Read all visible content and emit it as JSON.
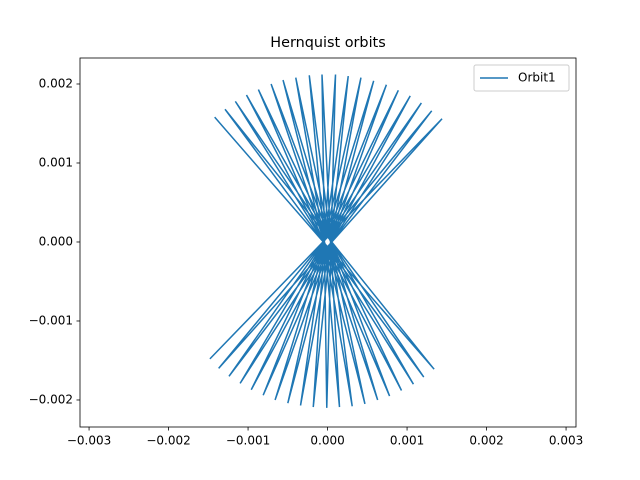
{
  "chart_data": {
    "type": "line",
    "title": "Hernquist orbits",
    "xlim": [
      -0.003114,
      0.003125
    ],
    "ylim": [
      -0.002342,
      0.002329
    ],
    "xticks": [
      {
        "value": -0.003,
        "label": "−0.003"
      },
      {
        "value": -0.002,
        "label": "−0.002"
      },
      {
        "value": -0.001,
        "label": "−0.001"
      },
      {
        "value": 0,
        "label": "0.000"
      },
      {
        "value": 0.001,
        "label": "0.001"
      },
      {
        "value": 0.002,
        "label": "0.002"
      },
      {
        "value": 0.003,
        "label": "0.003"
      }
    ],
    "yticks": [
      {
        "value": -0.002,
        "label": "−0.002"
      },
      {
        "value": -0.001,
        "label": "−0.001"
      },
      {
        "value": 0,
        "label": "0.000"
      },
      {
        "value": 0.001,
        "label": "0.001"
      },
      {
        "value": 0.002,
        "label": "0.002"
      }
    ],
    "legend": "upper right",
    "series": [
      {
        "name": "Orbit1",
        "color": "#1f77b4",
        "x": [
          -0.00142,
          0.00134,
          -0.00129,
          0.00121,
          -0.00116,
          0.00108,
          -0.00102,
          0.00093,
          -0.00087,
          0.00078,
          -0.00071,
          0.00063,
          -0.00056,
          0.00047,
          -0.0004,
          0.00031,
          -0.00023,
          0.00015,
          -7e-05,
          -1e-05,
          0.0001,
          -0.00018,
          0.00026,
          -0.00034,
          0.00042,
          -0.0005,
          0.00058,
          -0.00066,
          0.00074,
          -0.00081,
          0.00089,
          -0.00096,
          0.00104,
          -0.0011,
          0.00118,
          -0.00124,
          0.00131,
          -0.00137,
          0.00144,
          -0.00148
        ],
        "values": [
          0.00158,
          -0.00161,
          0.00168,
          -0.00171,
          0.00178,
          -0.0018,
          0.00186,
          -0.00188,
          0.00193,
          -0.00195,
          0.002,
          -0.002,
          0.00205,
          -0.00205,
          0.00208,
          -0.00208,
          0.00211,
          -0.00209,
          0.00212,
          -0.0021,
          0.00212,
          -0.00209,
          0.0021,
          -0.00207,
          0.00208,
          -0.00204,
          0.00204,
          -0.002,
          0.00199,
          -0.00194,
          0.00192,
          -0.00187,
          0.00185,
          -0.00179,
          0.00176,
          -0.0017,
          0.00166,
          -0.0016,
          0.00156,
          -0.00148
        ]
      }
    ]
  }
}
